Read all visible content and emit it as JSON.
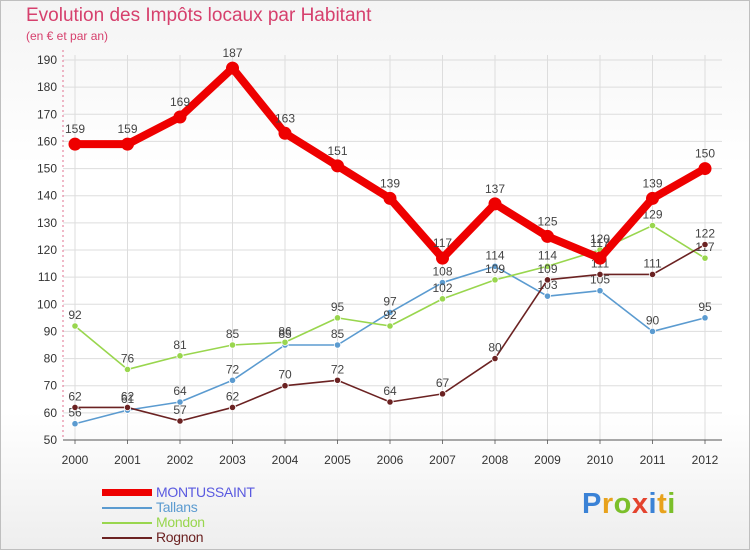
{
  "title": "Evolution des Impôts locaux par Habitant",
  "subtitle": "(en € et par an)",
  "logo": {
    "letters": [
      "P",
      "r",
      "o",
      "x",
      "i",
      "t",
      "i"
    ],
    "colors": [
      "#3a82d6",
      "#e8a21c",
      "#7bbf2a",
      "#e4432e",
      "#3a82d6",
      "#e8a21c",
      "#7bbf2a"
    ]
  },
  "chart_data": {
    "type": "line",
    "title": "Evolution des Impôts locaux par Habitant",
    "xlabel": "",
    "ylabel": "",
    "ylim": [
      50,
      190
    ],
    "ytick_step": 10,
    "grid": true,
    "legend_position": "bottom-left",
    "categories": [
      "2000",
      "2001",
      "2002",
      "2003",
      "2004",
      "2005",
      "2006",
      "2007",
      "2008",
      "2009",
      "2010",
      "2011",
      "2012"
    ],
    "ytick_labels": [
      "50",
      "60",
      "70",
      "80",
      "90",
      "100",
      "110",
      "120",
      "130",
      "140",
      "150",
      "160",
      "170",
      "180",
      "190"
    ],
    "series": [
      {
        "name": "MONTUSSAINT",
        "color": "#ee0000",
        "thick": true,
        "values": [
          159,
          159,
          169,
          187,
          163,
          151,
          139,
          117,
          137,
          125,
          117,
          139,
          150
        ],
        "labels": [
          "159",
          "159",
          "169",
          "187",
          "163",
          "151",
          "139",
          "117",
          "137",
          "125",
          "117",
          "139",
          "150"
        ]
      },
      {
        "name": "Tallans",
        "color": "#5b9bd0",
        "thick": false,
        "values": [
          56,
          61,
          64,
          72,
          85,
          85,
          97,
          108,
          114,
          103,
          105,
          90,
          95
        ],
        "labels": [
          "56",
          "61",
          "64",
          "72",
          "85",
          "85",
          "97",
          "108",
          "114",
          "103",
          "105",
          "90",
          "95"
        ]
      },
      {
        "name": "Mondon",
        "color": "#99d64e",
        "thick": false,
        "values": [
          92,
          76,
          81,
          85,
          86,
          95,
          92,
          102,
          109,
          114,
          120,
          129,
          117
        ],
        "labels": [
          "92",
          "76",
          "81",
          "85",
          "86",
          "95",
          "92",
          "102",
          "109",
          "114",
          "120",
          "129",
          "117"
        ]
      },
      {
        "name": "Rognon",
        "color": "#6b2222",
        "thick": false,
        "values": [
          62,
          62,
          57,
          62,
          70,
          72,
          64,
          67,
          80,
          109,
          111,
          111,
          122
        ],
        "labels": [
          "62",
          "62",
          "57",
          "62",
          "70",
          "72",
          "64",
          "67",
          "80",
          "109",
          "111",
          "111",
          "122"
        ]
      }
    ]
  }
}
